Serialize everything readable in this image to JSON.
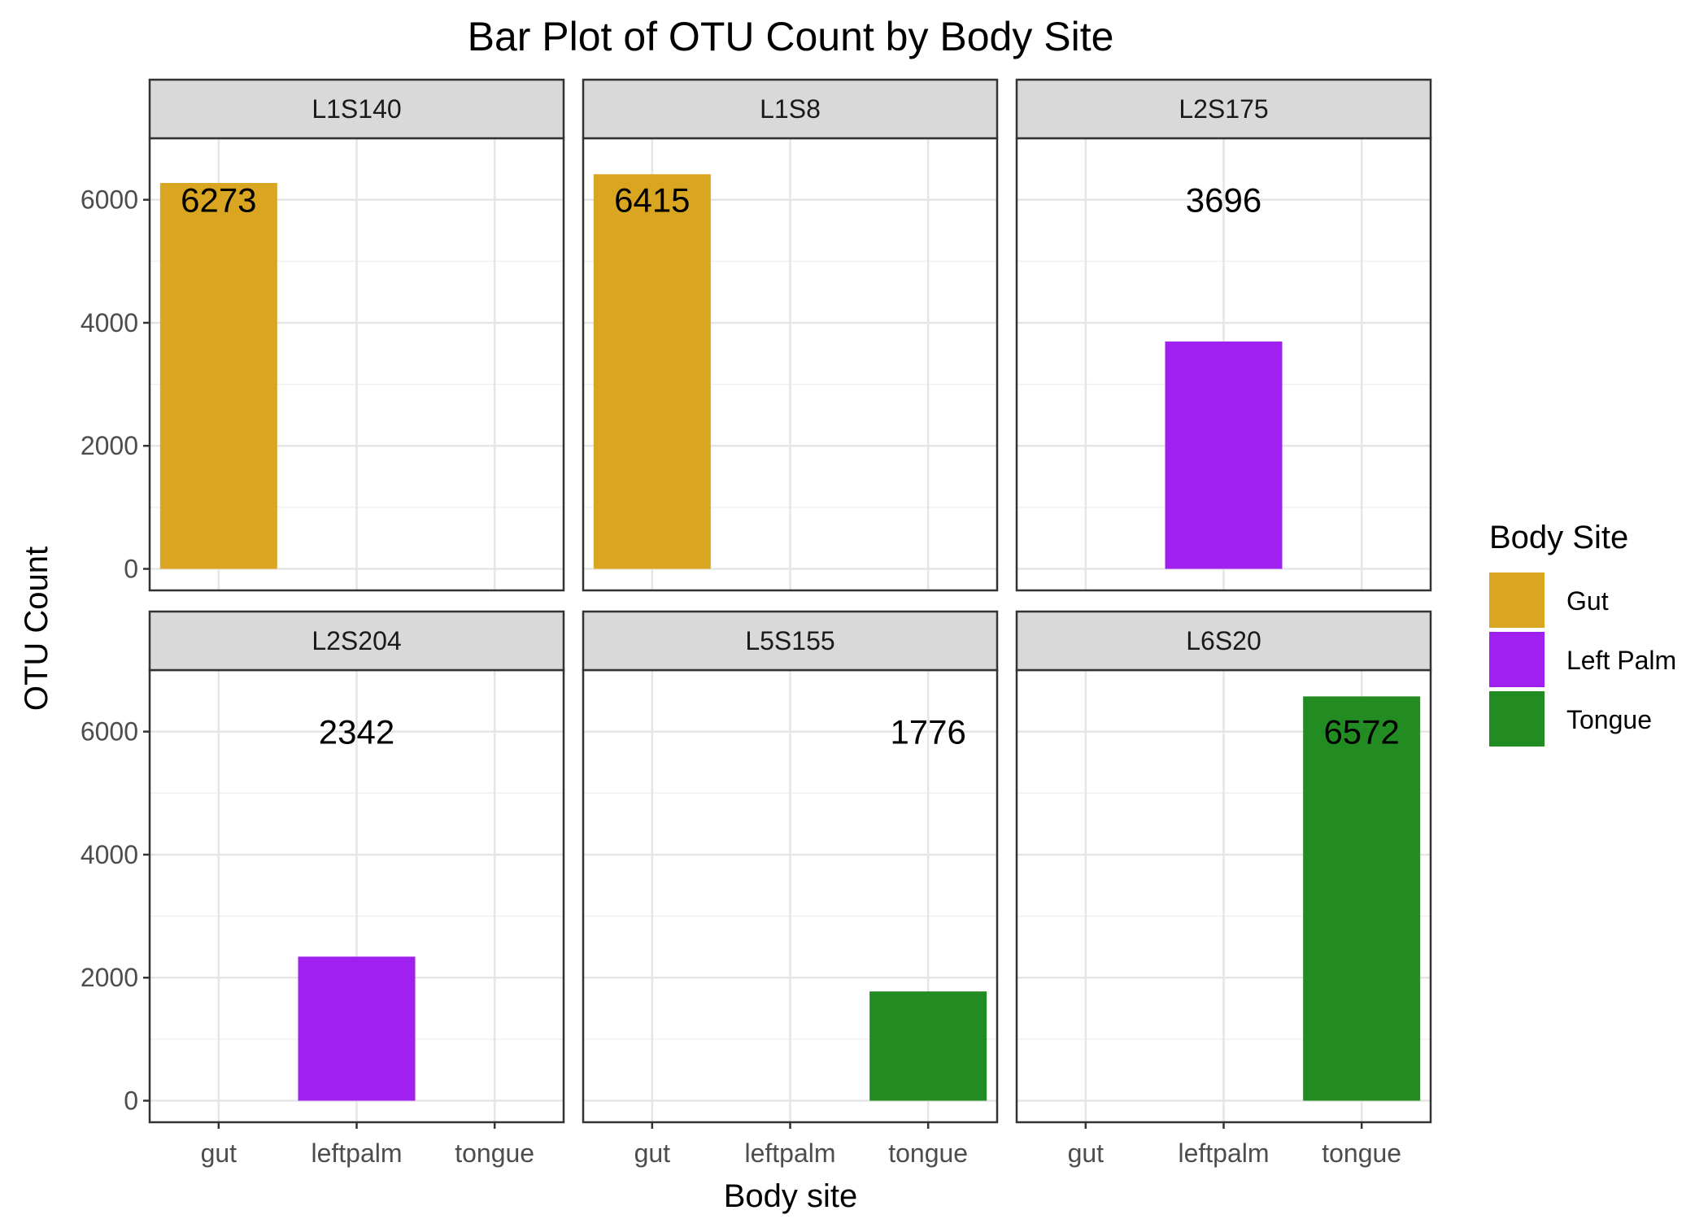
{
  "chart_data": {
    "type": "bar",
    "title": "Bar Plot of OTU Count by Body Site",
    "xlabel": "Body site",
    "ylabel": "OTU Count",
    "categories": [
      "gut",
      "leftpalm",
      "tongue"
    ],
    "ylim": [
      -350,
      7000
    ],
    "yticks": [
      0,
      2000,
      4000,
      6000
    ],
    "ytick_labels": [
      "0",
      "2000",
      "4000",
      "6000"
    ],
    "label_y": 6000,
    "grid": true,
    "facets": [
      {
        "name": "L1S140",
        "category": "gut",
        "value": 6273,
        "fill": "Gut"
      },
      {
        "name": "L1S8",
        "category": "gut",
        "value": 6415,
        "fill": "Gut"
      },
      {
        "name": "L2S175",
        "category": "leftpalm",
        "value": 3696,
        "fill": "Left Palm"
      },
      {
        "name": "L2S204",
        "category": "leftpalm",
        "value": 2342,
        "fill": "Left Palm"
      },
      {
        "name": "L5S155",
        "category": "tongue",
        "value": 1776,
        "fill": "Tongue"
      },
      {
        "name": "L6S20",
        "category": "tongue",
        "value": 6572,
        "fill": "Tongue"
      }
    ],
    "legend": {
      "title": "Body Site",
      "position": "right",
      "items": [
        {
          "label": "Gut",
          "color": "#DAA520"
        },
        {
          "label": "Left Palm",
          "color": "#A020F0"
        },
        {
          "label": "Tongue",
          "color": "#228B22"
        }
      ]
    }
  }
}
